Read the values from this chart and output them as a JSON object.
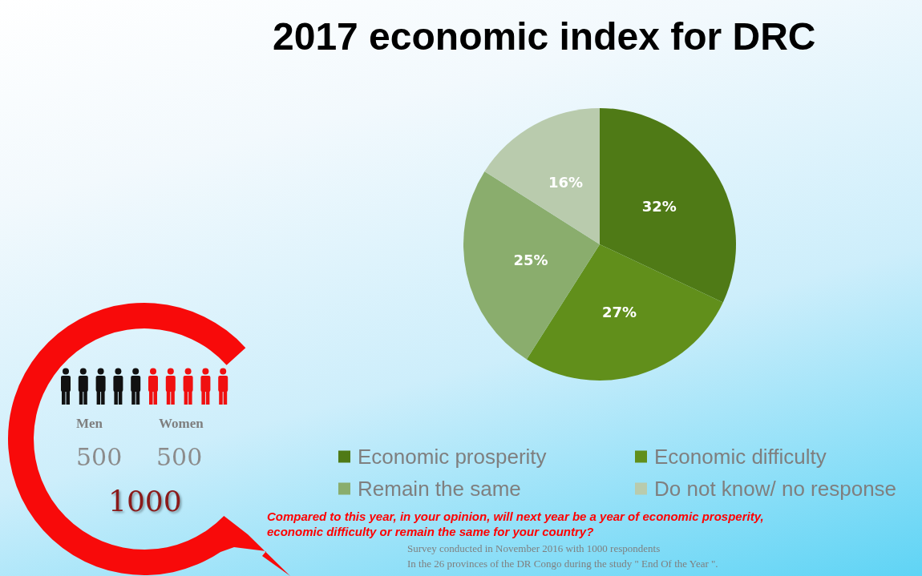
{
  "chart_data": {
    "type": "pie",
    "title": "2017 economic index for DRC",
    "categories": [
      "Economic prosperity",
      "Economic difficulty",
      "Remain the same",
      "Do not know/ no response"
    ],
    "values": [
      32,
      27,
      25,
      16
    ],
    "colors": [
      "#4f7a16",
      "#618f1b",
      "#8aad6d",
      "#b9cbad"
    ],
    "value_labels": [
      "32%",
      "27%",
      "25%",
      "16%"
    ],
    "legend": "bottom",
    "annotations": [
      "Men",
      "Women",
      "500",
      "500",
      "1000",
      "Compared to this year, in your opinion, will next year be a year of economic prosperity, economic difficulty or remain the same for your country?",
      "Survey conducted in November 2016 with 1000 respondents",
      "In the 26 provinces of the DR Congo during the study \" End Of the Year \"."
    ]
  }
}
